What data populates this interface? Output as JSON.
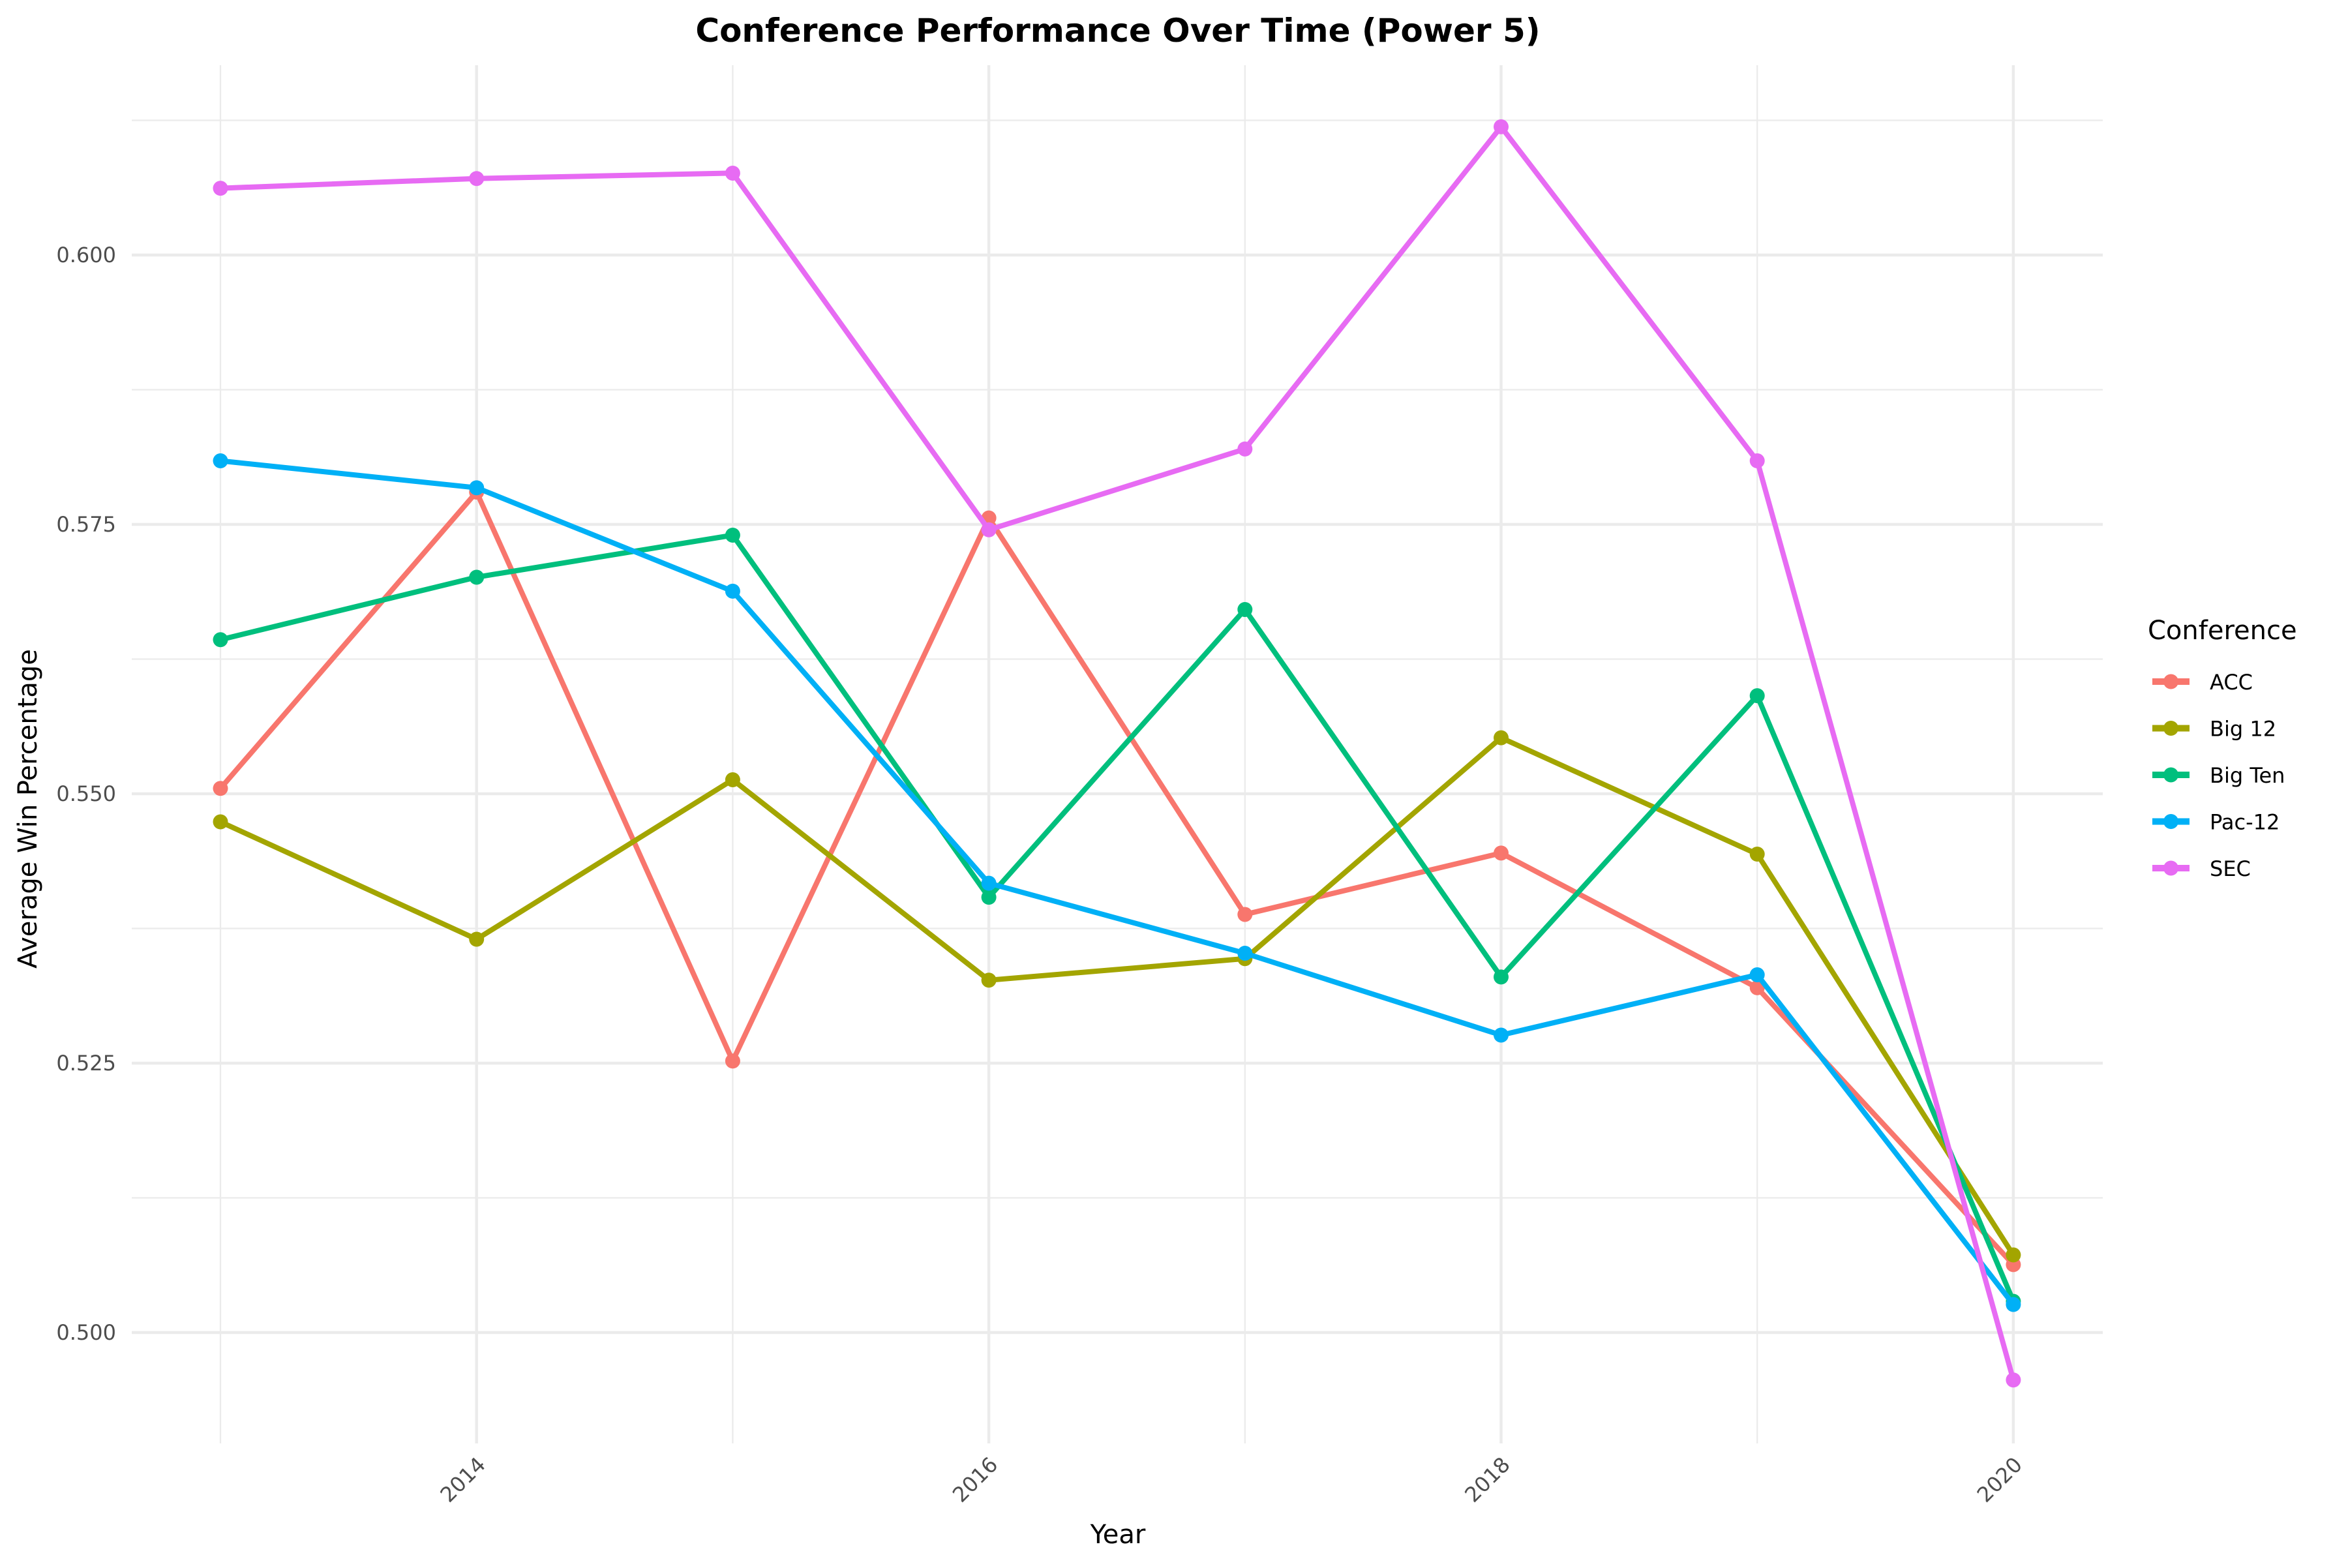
{
  "chart_data": {
    "type": "line",
    "title": "Conference Performance Over Time (Power 5)",
    "xlabel": "Year",
    "ylabel": "Average Win Percentage",
    "x": [
      2013,
      2014,
      2015,
      2016,
      2017,
      2018,
      2019,
      2020
    ],
    "x_ticks": [
      2014,
      2016,
      2018,
      2020
    ],
    "x_tick_labels": [
      "2014",
      "2016",
      "2018",
      "2020"
    ],
    "y_ticks": [
      0.5,
      0.525,
      0.55,
      0.575,
      0.6
    ],
    "y_tick_labels": [
      "0.500",
      "0.525",
      "0.550",
      "0.575",
      "0.600"
    ],
    "xlim": [
      2012.68,
      2020.35
    ],
    "ylim": [
      0.4901,
      0.6175
    ],
    "grid": true,
    "legend_position": "right",
    "legend_title": "Conference",
    "series": [
      {
        "name": "ACC",
        "color": "#F8766D",
        "values": [
          0.5505,
          0.578,
          0.5252,
          0.5756,
          0.5388,
          0.5445,
          0.532,
          0.5063
        ]
      },
      {
        "name": "Big 12",
        "color": "#A3A500",
        "values": [
          0.5474,
          0.5365,
          0.5513,
          0.5327,
          0.5347,
          0.5552,
          0.5444,
          0.5072
        ]
      },
      {
        "name": "Big Ten",
        "color": "#00BF7D",
        "values": [
          0.5643,
          0.5701,
          0.574,
          0.5404,
          0.5671,
          0.533,
          0.5591,
          0.5029
        ]
      },
      {
        "name": "Pac-12",
        "color": "#00B0F6",
        "values": [
          0.5809,
          0.5784,
          0.5688,
          0.5417,
          0.5352,
          0.5276,
          0.5332,
          0.5026
        ]
      },
      {
        "name": "SEC",
        "color": "#E76BF3",
        "values": [
          0.6062,
          0.6071,
          0.6076,
          0.5745,
          0.582,
          0.6119,
          0.5809,
          0.4956
        ]
      }
    ]
  }
}
